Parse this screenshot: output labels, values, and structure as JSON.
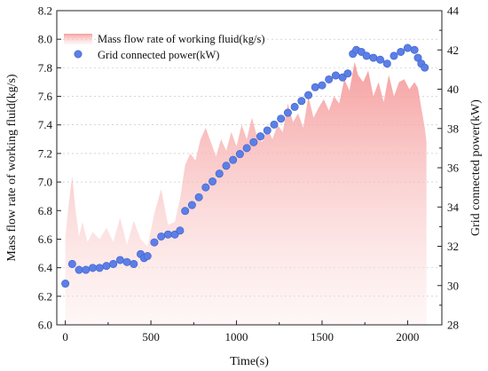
{
  "chart_data": {
    "type": "area",
    "xlabel": "Time(s)",
    "ylabel_left": "Mass flow rate of working fluid(kg/s)",
    "ylabel_right": "Grid connected power(kW)",
    "xlim": [
      -50,
      2200
    ],
    "ylim_left": [
      6.0,
      8.2
    ],
    "ylim_right": [
      28,
      44
    ],
    "x_ticks": [
      "0",
      "500",
      "1000",
      "1500",
      "2000"
    ],
    "y_left_ticks": [
      "6.0",
      "6.2",
      "6.4",
      "6.6",
      "6.8",
      "7.0",
      "7.2",
      "7.4",
      "7.6",
      "7.8",
      "8.0",
      "8.2"
    ],
    "y_right_ticks": [
      "28",
      "30",
      "32",
      "34",
      "36",
      "38",
      "40",
      "42",
      "44"
    ],
    "grid": "dotted horizontal, partial",
    "legend_position": "top-left",
    "series": [
      {
        "name": "Mass flow rate of working fluid(kg/s)",
        "axis": "left",
        "style": "area",
        "color": "#f7a6a6",
        "x": [
          0,
          20,
          40,
          60,
          80,
          100,
          130,
          160,
          200,
          240,
          280,
          320,
          360,
          400,
          440,
          480,
          520,
          560,
          600,
          640,
          670,
          700,
          730,
          760,
          790,
          820,
          850,
          880,
          910,
          940,
          970,
          1000,
          1030,
          1060,
          1090,
          1120,
          1150,
          1180,
          1210,
          1240,
          1270,
          1300,
          1330,
          1360,
          1390,
          1420,
          1450,
          1480,
          1510,
          1540,
          1570,
          1600,
          1630,
          1660,
          1690,
          1710,
          1740,
          1770,
          1800,
          1830,
          1860,
          1890,
          1920,
          1950,
          1980,
          2010,
          2040,
          2060,
          2080,
          2100,
          2110
        ],
        "values": [
          6.62,
          6.85,
          7.04,
          6.8,
          6.62,
          6.72,
          6.58,
          6.65,
          6.6,
          6.68,
          6.58,
          6.75,
          6.56,
          6.73,
          6.6,
          6.55,
          6.78,
          6.95,
          6.7,
          6.72,
          6.88,
          7.12,
          7.2,
          7.15,
          7.3,
          7.38,
          7.28,
          7.18,
          7.3,
          7.22,
          7.35,
          7.25,
          7.4,
          7.3,
          7.45,
          7.32,
          7.28,
          7.38,
          7.3,
          7.4,
          7.35,
          7.55,
          7.42,
          7.48,
          7.38,
          7.6,
          7.45,
          7.52,
          7.58,
          7.5,
          7.6,
          7.55,
          7.72,
          7.64,
          7.84,
          7.75,
          7.7,
          7.78,
          7.6,
          7.7,
          7.56,
          7.75,
          7.6,
          7.7,
          7.72,
          7.65,
          7.7,
          7.66,
          7.52,
          7.38,
          7.28
        ]
      },
      {
        "name": "Grid connected power(kW)",
        "axis": "right",
        "style": "scatter",
        "color": "#5b7fe6",
        "x": [
          0,
          40,
          80,
          120,
          160,
          200,
          240,
          280,
          320,
          360,
          400,
          440,
          460,
          480,
          520,
          560,
          600,
          640,
          670,
          700,
          740,
          780,
          820,
          860,
          900,
          940,
          980,
          1020,
          1060,
          1100,
          1140,
          1180,
          1220,
          1260,
          1300,
          1340,
          1380,
          1420,
          1460,
          1500,
          1540,
          1580,
          1620,
          1650,
          1680,
          1700,
          1730,
          1760,
          1800,
          1840,
          1880,
          1920,
          1960,
          2000,
          2040,
          2060,
          2080,
          2100
        ],
        "values": [
          30.1,
          31.1,
          30.8,
          30.8,
          30.9,
          30.9,
          31.0,
          31.1,
          31.3,
          31.2,
          31.1,
          31.6,
          31.4,
          31.5,
          32.2,
          32.5,
          32.6,
          32.6,
          32.8,
          33.8,
          34.1,
          34.5,
          35.0,
          35.3,
          35.7,
          36.1,
          36.4,
          36.7,
          37.0,
          37.3,
          37.6,
          37.9,
          38.2,
          38.5,
          38.8,
          39.1,
          39.4,
          39.7,
          40.1,
          40.2,
          40.5,
          40.7,
          40.6,
          40.8,
          41.8,
          42.0,
          41.9,
          41.7,
          41.6,
          41.5,
          41.3,
          41.7,
          41.9,
          42.1,
          42.0,
          41.6,
          41.3,
          41.1
        ]
      }
    ]
  }
}
